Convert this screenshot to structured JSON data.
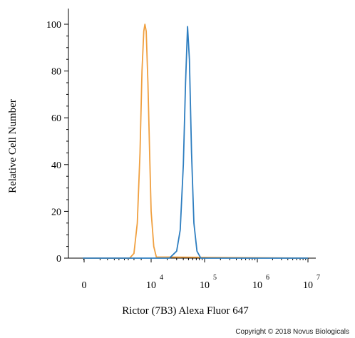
{
  "chart_data": {
    "type": "line",
    "xlabel": "Rictor (7B3) Alexa Fluor 647",
    "ylabel": "Relative Cell Number",
    "xscale": "biexponential",
    "x_ticks": [
      {
        "value": 0,
        "base": "0",
        "exp": ""
      },
      {
        "value": 10000,
        "base": "10",
        "exp": "4"
      },
      {
        "value": 100000,
        "base": "10",
        "exp": "5"
      },
      {
        "value": 1000000,
        "base": "10",
        "exp": "6"
      },
      {
        "value": 10000000,
        "base": "10",
        "exp": "7"
      }
    ],
    "y_ticks": [
      0,
      20,
      40,
      60,
      80,
      100
    ],
    "ylim": [
      0,
      105
    ],
    "series": [
      {
        "color": "#f0a040",
        "points": [
          [
            2200,
            0
          ],
          [
            3000,
            2
          ],
          [
            3800,
            15
          ],
          [
            4600,
            45
          ],
          [
            5300,
            80
          ],
          [
            6000,
            97
          ],
          [
            6500,
            100
          ],
          [
            7100,
            97
          ],
          [
            8000,
            75
          ],
          [
            9000,
            45
          ],
          [
            10000,
            20
          ],
          [
            11200,
            5
          ],
          [
            12500,
            0.5
          ]
        ]
      },
      {
        "color": "#2e7ec0",
        "points": [
          [
            22000,
            0
          ],
          [
            30000,
            3
          ],
          [
            35000,
            12
          ],
          [
            40000,
            40
          ],
          [
            44000,
            75
          ],
          [
            48000,
            99
          ],
          [
            52000,
            85
          ],
          [
            57000,
            45
          ],
          [
            63000,
            15
          ],
          [
            72000,
            3
          ],
          [
            85000,
            0
          ]
        ]
      }
    ]
  },
  "copyright": "Copyright © 2018 Novus Biologicals"
}
